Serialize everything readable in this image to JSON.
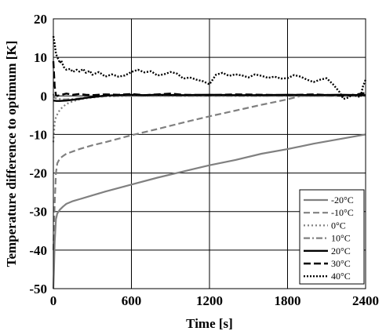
{
  "chart_data": {
    "type": "line",
    "xlabel": "Time [s]",
    "ylabel": "Temperature difference to optimum [K]",
    "xlim": [
      0,
      2400
    ],
    "ylim": [
      -50,
      20
    ],
    "xticks": [
      0,
      600,
      1200,
      1800,
      2400
    ],
    "yticks": [
      -50,
      -40,
      -30,
      -20,
      -10,
      0,
      10,
      20
    ],
    "grid": true,
    "legend_position": "bottom-right",
    "series": [
      {
        "name": "-20°C",
        "color": "#808080",
        "dash": "solid",
        "x": [
          0,
          5,
          10,
          20,
          30,
          50,
          75,
          100,
          150,
          200,
          300,
          400,
          600,
          800,
          1000,
          1200,
          1400,
          1600,
          1800,
          2000,
          2200,
          2400
        ],
        "y": [
          -50,
          -45,
          -38,
          -32,
          -30.5,
          -29.5,
          -28.7,
          -28,
          -27.3,
          -26.8,
          -25.8,
          -24.8,
          -23,
          -21.2,
          -19.6,
          -18,
          -16.6,
          -15,
          -13.8,
          -12.4,
          -11.2,
          -10
        ]
      },
      {
        "name": "-10°C",
        "color": "#808080",
        "dash": "8 4",
        "x": [
          0,
          5,
          10,
          20,
          30,
          50,
          75,
          100,
          150,
          200,
          300,
          400,
          600,
          800,
          1000,
          1200,
          1400,
          1600,
          1800,
          1900,
          1950,
          2000,
          2200,
          2400
        ],
        "y": [
          -40,
          -34,
          -28,
          -20,
          -17.5,
          -16.2,
          -15.6,
          -15,
          -14.4,
          -13.8,
          -12.8,
          -12,
          -10.2,
          -8.6,
          -6.9,
          -5.3,
          -3.8,
          -2.3,
          -0.9,
          0,
          0,
          0,
          0,
          0
        ]
      },
      {
        "name": "0°C",
        "color": "#808080",
        "dash": "2 3",
        "x": [
          0,
          5,
          10,
          20,
          30,
          50,
          75,
          100,
          150,
          200,
          300,
          400,
          600,
          800,
          1000,
          1200,
          1400,
          1600,
          1800,
          2000,
          2200,
          2400
        ],
        "y": [
          -12,
          -9.5,
          -7,
          -5.5,
          -4.8,
          -3.6,
          -2.8,
          -2.1,
          -1.4,
          -0.9,
          -0.4,
          -0.1,
          0,
          0,
          0,
          0,
          0,
          0,
          0,
          0,
          0,
          0
        ]
      },
      {
        "name": "10°C",
        "color": "#808080",
        "dash": "8 3 2 3",
        "x": [
          0,
          5,
          10,
          20,
          30,
          50,
          75,
          100,
          150,
          200,
          300,
          400,
          500,
          600,
          800,
          1000,
          1200,
          1400,
          1600,
          1800,
          2000,
          2200,
          2400
        ],
        "y": [
          0.5,
          -0.2,
          -0.5,
          -0.6,
          -0.7,
          -0.8,
          -0.9,
          -0.9,
          -0.8,
          -0.6,
          -0.3,
          -0.1,
          0,
          0,
          0,
          0,
          0,
          0,
          0,
          0,
          0,
          0,
          0
        ]
      },
      {
        "name": "20°C",
        "color": "#000000",
        "dash": "solid",
        "x": [
          0,
          25,
          50,
          100,
          150,
          200,
          250,
          300,
          350,
          400,
          500,
          600,
          700,
          800,
          1000,
          1200,
          1400,
          1600,
          1800,
          2000,
          2200,
          2400
        ],
        "y": [
          -1.2,
          -1.3,
          -1.3,
          -1.2,
          -1,
          -0.8,
          -0.5,
          -0.3,
          -0.1,
          0.1,
          0.2,
          0.3,
          0.2,
          0.3,
          0.2,
          0.3,
          0.2,
          0.2,
          0.3,
          0.2,
          0.3,
          0.2
        ]
      },
      {
        "name": "30°C",
        "color": "#000000",
        "dash": "9 4",
        "x": [
          0,
          5,
          10,
          20,
          30,
          50,
          75,
          100,
          150,
          200,
          250,
          300,
          400,
          500,
          600,
          700,
          800,
          900,
          1000,
          1200,
          1400,
          1600,
          1800,
          2000,
          2200,
          2300,
          2350,
          2400
        ],
        "y": [
          9,
          6,
          2.5,
          0.2,
          0,
          0.2,
          0.4,
          0.6,
          0.3,
          0.5,
          0.3,
          0.2,
          0.4,
          0.3,
          0.5,
          0.2,
          0.4,
          0.6,
          0.3,
          0.2,
          0.4,
          0.3,
          0.2,
          0.4,
          0.1,
          0.2,
          0.5,
          0.8
        ]
      },
      {
        "name": "40°C",
        "color": "#000000",
        "dash": "2 2",
        "x": [
          0,
          10,
          20,
          30,
          40,
          50,
          60,
          80,
          100,
          130,
          150,
          180,
          200,
          230,
          250,
          280,
          300,
          350,
          400,
          450,
          500,
          550,
          600,
          650,
          700,
          750,
          800,
          850,
          900,
          950,
          1000,
          1050,
          1100,
          1150,
          1200,
          1250,
          1300,
          1350,
          1400,
          1450,
          1500,
          1550,
          1600,
          1650,
          1700,
          1750,
          1800,
          1850,
          1900,
          1950,
          2000,
          2050,
          2100,
          2150,
          2200,
          2230,
          2260,
          2300,
          2330,
          2360,
          2380,
          2400
        ],
        "y": [
          15.5,
          13.5,
          11,
          10,
          9.5,
          8.5,
          9.2,
          7.5,
          6.8,
          7,
          6.2,
          6.8,
          6.3,
          7,
          6,
          6.5,
          5.5,
          6.2,
          5,
          5.6,
          5,
          5.3,
          6.2,
          6.8,
          6.1,
          6.4,
          5.3,
          5.6,
          6.2,
          5.8,
          4.5,
          4.8,
          4.2,
          3.8,
          3,
          5.5,
          6,
          5.2,
          5.6,
          5.3,
          4.8,
          5.6,
          5.2,
          4.7,
          5,
          4.5,
          4.6,
          5.4,
          5,
          4.2,
          3.6,
          4.2,
          4.6,
          3,
          1,
          -0.8,
          -0.5,
          0.3,
          0,
          -0.3,
          2.5,
          4.2
        ]
      }
    ]
  }
}
